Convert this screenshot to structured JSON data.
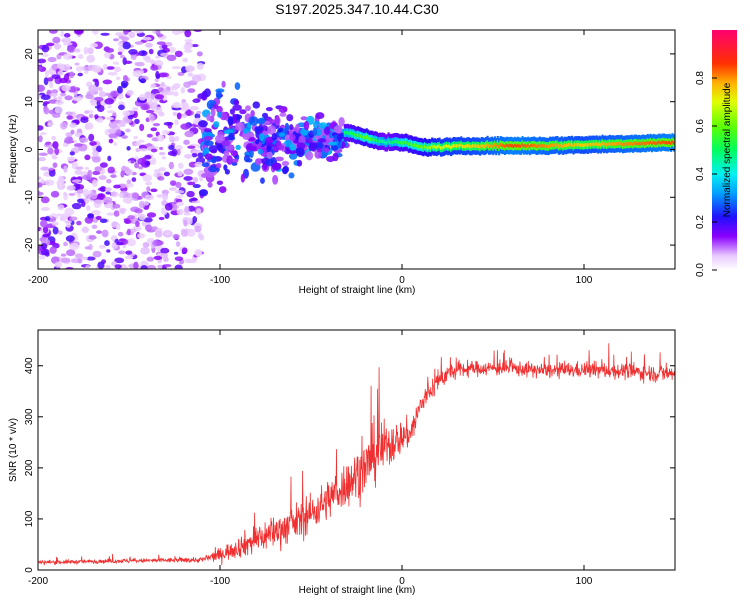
{
  "chart_data": [
    {
      "type": "heatmap",
      "title": "S197.2025.347.10.44.C30",
      "xlabel": "Height of straight line (km)",
      "ylabel": "Frequency (Hz)",
      "xlim": [
        -200,
        150
      ],
      "ylim": [
        -25,
        25
      ],
      "xticks": [
        -200,
        -100,
        0,
        100
      ],
      "yticks": [
        -20,
        -10,
        0,
        10,
        20
      ],
      "colorbar": {
        "label": "Normalized spectral amplitude",
        "range": [
          0,
          1
        ],
        "ticks": [
          "0.0",
          "0.2",
          "0.4",
          "0.6",
          "0.8"
        ],
        "tick_values": [
          0,
          0.2,
          0.4,
          0.6,
          0.8
        ]
      },
      "ridge": {
        "description": "tonal ridge near 0 Hz with normalized amplitude",
        "x": [
          -30,
          -20,
          -10,
          0,
          10,
          20,
          40,
          60,
          80,
          100,
          120,
          150
        ],
        "frequency": [
          3.5,
          2.5,
          1.5,
          1.5,
          0.5,
          0.5,
          0.8,
          0.8,
          0.8,
          1.0,
          1.2,
          1.5
        ],
        "amplitude": [
          0.5,
          0.6,
          0.45,
          0.55,
          0.6,
          0.7,
          0.75,
          0.85,
          0.8,
          0.75,
          0.8,
          0.85
        ]
      },
      "noise_region": {
        "x_range": [
          -200,
          -110
        ],
        "amplitude_range": [
          0.05,
          0.2
        ]
      },
      "transition_region": {
        "x_range": [
          -110,
          -30
        ],
        "amplitude_range": [
          0.1,
          0.35
        ]
      }
    },
    {
      "type": "line",
      "title": "",
      "xlabel": "Height of straight line (km)",
      "ylabel": "SNR (10 * v/v)",
      "xlim": [
        -200,
        150
      ],
      "ylim": [
        0,
        470
      ],
      "xticks": [
        -200,
        -100,
        0,
        100
      ],
      "yticks": [
        0,
        100,
        200,
        300,
        400
      ],
      "color": "#f03030",
      "series": [
        {
          "name": "SNR",
          "x": [
            -200,
            -150,
            -110,
            -100,
            -90,
            -80,
            -70,
            -60,
            -50,
            -40,
            -30,
            -20,
            -15,
            -10,
            -5,
            0,
            5,
            10,
            15,
            20,
            25,
            30,
            40,
            60,
            80,
            100,
            120,
            140,
            150
          ],
          "y": [
            15,
            18,
            20,
            30,
            45,
            60,
            75,
            90,
            110,
            140,
            170,
            200,
            230,
            240,
            250,
            260,
            270,
            320,
            350,
            370,
            385,
            390,
            395,
            395,
            390,
            392,
            390,
            385,
            385
          ],
          "spread": [
            8,
            8,
            10,
            25,
            40,
            60,
            60,
            70,
            70,
            75,
            90,
            100,
            120,
            100,
            80,
            60,
            60,
            50,
            45,
            40,
            35,
            30,
            28,
            28,
            28,
            30,
            30,
            32,
            35
          ]
        }
      ]
    }
  ]
}
